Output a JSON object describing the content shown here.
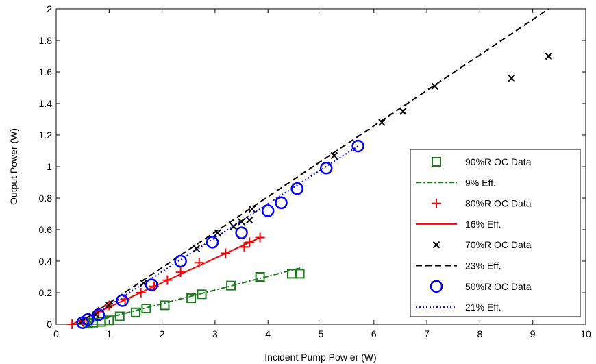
{
  "chart_data": {
    "type": "scatter",
    "title": "",
    "xlabel": "Incident Pump Pow er (W)",
    "ylabel": "Output Power (W)",
    "xlim": [
      0,
      10
    ],
    "ylim": [
      0,
      2
    ],
    "xticks": [
      0,
      1,
      2,
      3,
      4,
      5,
      6,
      7,
      8,
      9,
      10
    ],
    "yticks": [
      0,
      0.2,
      0.4,
      0.6,
      0.8,
      1,
      1.2,
      1.4,
      1.6,
      1.8,
      2
    ],
    "xtick_labels": [
      "0",
      "1",
      "2",
      "3",
      "4",
      "5",
      "6",
      "7",
      "8",
      "9",
      "10"
    ],
    "ytick_labels": [
      "0",
      "0.2",
      "0.4",
      "0.6",
      "0.8",
      "1",
      "1.2",
      "1.4",
      "1.6",
      "1.8",
      "2"
    ],
    "grid": false,
    "legend_position": "bottom-right",
    "series": [
      {
        "name": "90%R OC Data",
        "kind": "scatter",
        "marker": "square",
        "color": "#1a7f1a",
        "x": [
          0.6,
          0.7,
          0.85,
          1.0,
          1.2,
          1.5,
          1.7,
          2.05,
          2.55,
          2.75,
          3.3,
          3.85,
          4.45,
          4.6
        ],
        "y": [
          0.005,
          0.01,
          0.015,
          0.025,
          0.05,
          0.075,
          0.1,
          0.12,
          0.165,
          0.19,
          0.245,
          0.3,
          0.32,
          0.32
        ]
      },
      {
        "name": "9% Eff.",
        "kind": "line",
        "dash": "dashdot",
        "color": "#1a7f1a",
        "x": [
          0.5,
          4.65
        ],
        "y": [
          0.0,
          0.36
        ]
      },
      {
        "name": "80%R OC Data",
        "kind": "scatter",
        "marker": "plus",
        "color": "#ff0000",
        "x": [
          0.3,
          0.5,
          0.8,
          1.0,
          1.3,
          1.6,
          1.85,
          2.1,
          2.35,
          2.7,
          3.2,
          3.55,
          3.65,
          3.85
        ],
        "y": [
          0.0,
          0.02,
          0.08,
          0.12,
          0.16,
          0.2,
          0.24,
          0.28,
          0.33,
          0.39,
          0.45,
          0.49,
          0.52,
          0.55
        ]
      },
      {
        "name": "16% Eff.",
        "kind": "line",
        "dash": "solid",
        "color": "#ff0000",
        "x": [
          0.3,
          3.85
        ],
        "y": [
          0.0,
          0.55
        ]
      },
      {
        "name": "70%R OC Data",
        "kind": "scatter",
        "marker": "x",
        "color": "#000000",
        "x": [
          0.5,
          0.75,
          1.0,
          1.65,
          2.65,
          3.05,
          3.35,
          3.5,
          3.65,
          3.7,
          5.25,
          6.15,
          6.55,
          7.15,
          8.6,
          9.3
        ],
        "y": [
          0.02,
          0.06,
          0.12,
          0.26,
          0.48,
          0.58,
          0.62,
          0.65,
          0.66,
          0.73,
          1.07,
          1.28,
          1.35,
          1.51,
          1.56,
          1.7
        ]
      },
      {
        "name": "23% Eff.",
        "kind": "line",
        "dash": "dashed",
        "color": "#000000",
        "x": [
          0.4,
          9.3
        ],
        "y": [
          0.0,
          2.0
        ]
      },
      {
        "name": "50%R OC Data",
        "kind": "scatter",
        "marker": "circle",
        "color": "#0000ff",
        "x": [
          0.5,
          0.6,
          0.8,
          1.25,
          1.8,
          2.35,
          2.95,
          3.5,
          4.0,
          4.25,
          4.55,
          5.1,
          5.7
        ],
        "y": [
          0.01,
          0.03,
          0.06,
          0.15,
          0.25,
          0.4,
          0.52,
          0.58,
          0.72,
          0.77,
          0.86,
          0.99,
          1.13
        ]
      },
      {
        "name": "21% Eff.",
        "kind": "line",
        "dash": "dotted",
        "color": "#0000ff",
        "x": [
          0.45,
          5.7
        ],
        "y": [
          0.0,
          1.13
        ]
      }
    ]
  }
}
